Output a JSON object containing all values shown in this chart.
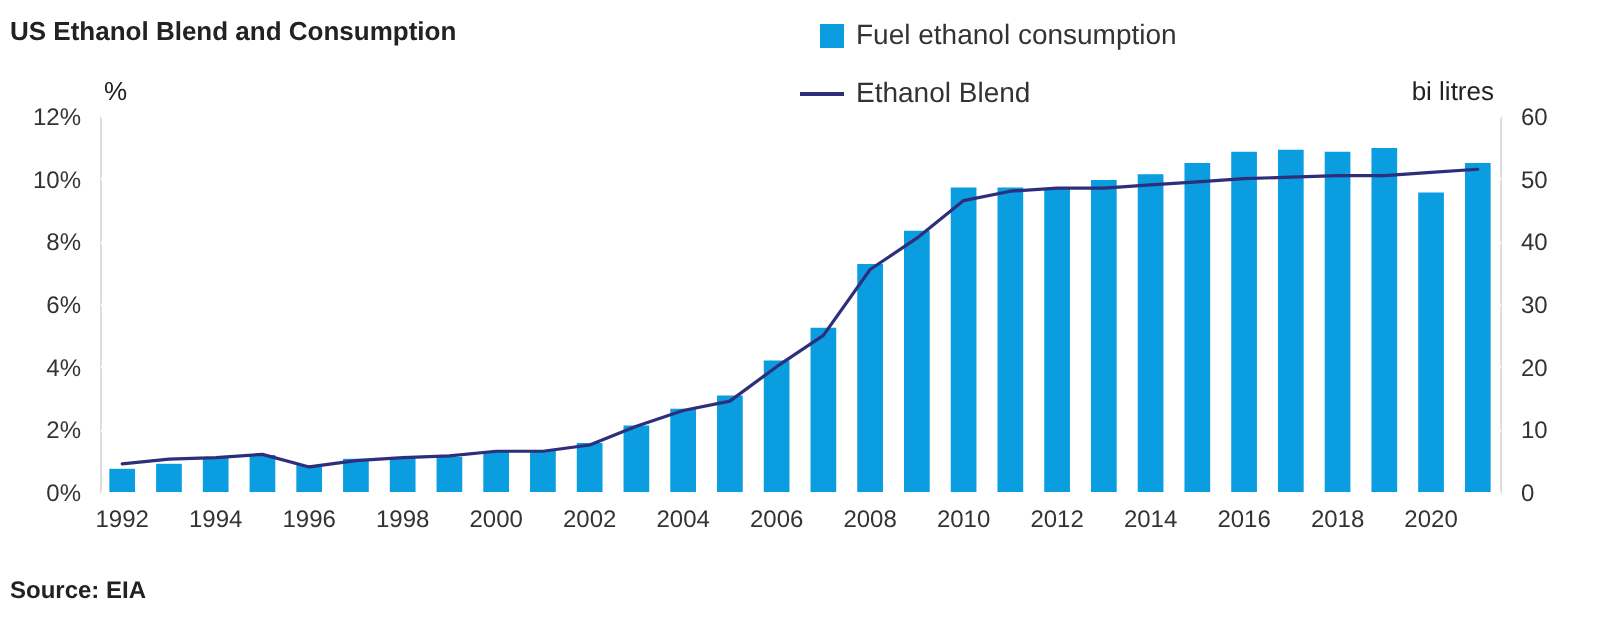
{
  "chart_data": {
    "type": "bar",
    "title": "US Ethanol Blend and Consumption",
    "ylabel": "%",
    "y2label": "bi litres",
    "annotations": [
      "Source: EIA"
    ],
    "categories": [
      "1992",
      null,
      "1994",
      null,
      "1996",
      null,
      "1998",
      null,
      "2000",
      null,
      "2002",
      null,
      "2004",
      null,
      "2006",
      null,
      "2008",
      null,
      "2010",
      null,
      "2012",
      null,
      "2014",
      null,
      "2016",
      null,
      "2018",
      null,
      "2020",
      null
    ],
    "series": [
      {
        "name": "Fuel ethanol consumption",
        "axis": "y2",
        "color": "#0a9de0",
        "values": [
          3.7,
          4.5,
          5.5,
          5.9,
          4.3,
          5.3,
          5.5,
          5.6,
          6.4,
          6.6,
          7.8,
          10.6,
          13.3,
          15.4,
          21.0,
          26.2,
          36.4,
          41.7,
          48.6,
          48.6,
          48.4,
          49.8,
          50.7,
          52.5,
          54.3,
          54.6,
          54.3,
          54.9,
          47.8,
          52.5
        ]
      },
      {
        "name": "Ethanol Blend",
        "type": "line",
        "axis": "y",
        "color": "#2e2e7a",
        "values": [
          0.9,
          1.05,
          1.1,
          1.2,
          0.8,
          1.0,
          1.1,
          1.15,
          1.3,
          1.3,
          1.5,
          2.1,
          2.6,
          2.9,
          4.0,
          5.0,
          7.1,
          8.1,
          9.3,
          9.6,
          9.7,
          9.7,
          9.8,
          9.9,
          10.0,
          10.05,
          10.1,
          10.1,
          10.2,
          10.3
        ]
      }
    ],
    "ylim": [
      0,
      12
    ],
    "yticks": [
      {
        "value": 0,
        "label": "0%"
      },
      {
        "value": 2,
        "label": "2%"
      },
      {
        "value": 4,
        "label": "4%"
      },
      {
        "value": 6,
        "label": "6%"
      },
      {
        "value": 8,
        "label": "8%"
      },
      {
        "value": 10,
        "label": "10%"
      },
      {
        "value": 12,
        "label": "12%"
      }
    ],
    "y2lim": [
      0,
      60
    ],
    "y2ticks": [
      0,
      10,
      20,
      30,
      40,
      50,
      60
    ],
    "grid": "y",
    "legend": "top",
    "line_style": "solid",
    "marker": "none"
  }
}
